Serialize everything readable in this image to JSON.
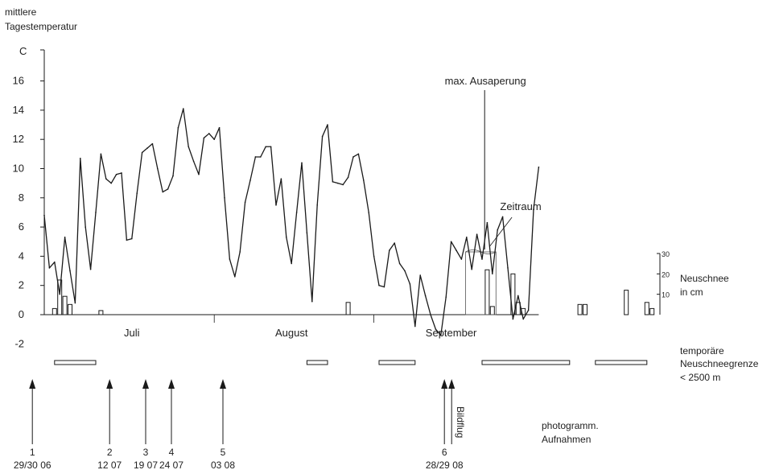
{
  "chart_data": {
    "type": "line",
    "y_title": [
      "mittlere",
      "Tagestemperatur"
    ],
    "y_unit": "C",
    "ylim": [
      -3,
      17
    ],
    "yticks": [
      16,
      14,
      12,
      10,
      8,
      6,
      4,
      2,
      0,
      -2
    ],
    "month_labels": [
      "Juli",
      "August",
      "September"
    ],
    "x_start": "29.06",
    "series": [
      {
        "values": [
          6.8,
          3.2,
          3.6,
          1.4,
          5.3,
          3.0,
          0.8,
          10.7,
          6.0,
          3.1,
          7.0,
          11.0,
          9.3,
          9.0,
          9.6,
          9.7,
          5.1,
          5.2,
          8.3,
          11.1,
          11.4,
          11.7,
          10.0,
          8.4,
          8.6,
          9.5,
          12.8,
          14.1,
          11.5,
          10.5,
          9.6,
          12.1,
          12.4,
          12.0,
          12.8,
          8.0,
          3.8,
          2.6,
          4.3,
          7.7,
          9.2,
          10.8,
          10.8,
          11.5,
          11.5,
          7.5,
          9.3,
          5.3,
          3.5,
          7.0,
          10.4,
          5.6,
          0.9,
          7.5,
          12.2,
          13.0,
          9.1,
          9.0,
          8.9,
          9.4,
          10.8,
          11.0,
          9.2,
          7.0,
          4.0,
          2.0,
          1.9,
          4.4,
          4.9,
          3.5,
          3.0,
          2.1,
          -0.8,
          2.7,
          1.3,
          0.0,
          -1.0,
          -1.4,
          1.2,
          5.0,
          4.4,
          3.8,
          5.3,
          3.1,
          5.5,
          3.8,
          6.3,
          2.8,
          5.8,
          6.7,
          3.2,
          -0.3,
          1.3,
          -0.3,
          0.3,
          7.2,
          10.1
        ]
      }
    ],
    "snow_axis": {
      "ticks": [
        30,
        20,
        10
      ],
      "label": [
        "Neuschnee",
        "in cm"
      ],
      "max": 30
    },
    "snow_bars": [
      {
        "day": 2,
        "cm": 3
      },
      {
        "day": 3,
        "cm": 17
      },
      {
        "day": 4,
        "cm": 9
      },
      {
        "day": 5,
        "cm": 5
      },
      {
        "day": 11,
        "cm": 2
      },
      {
        "day": 59,
        "cm": 6
      },
      {
        "day": 86,
        "cm": 22
      },
      {
        "day": 87,
        "cm": 4
      },
      {
        "day": 91,
        "cm": 20
      },
      {
        "day": 92,
        "cm": 6
      },
      {
        "day": 93,
        "cm": 3
      },
      {
        "day": 104,
        "cm": 5
      },
      {
        "day": 105,
        "cm": 5
      },
      {
        "day": 113,
        "cm": 12
      },
      {
        "day": 117,
        "cm": 6
      },
      {
        "day": 118,
        "cm": 3
      }
    ],
    "annotations": {
      "max_ausaperung": "max. Ausaperung",
      "zeitraum": "Zeitraum",
      "bildflug": "Bildflug",
      "photo_title": [
        "photogramm.",
        "Aufnahmen"
      ],
      "neuschneegrenze": [
        "temporäre",
        "Neuschneegrenze",
        "< 2500 m"
      ]
    },
    "neuschneegrenze_periods": [
      [
        2,
        10
      ],
      [
        51,
        55
      ],
      [
        65,
        72
      ],
      [
        85,
        102
      ],
      [
        107,
        117
      ]
    ],
    "photo_flights": [
      {
        "num": "1",
        "date": "29/30 06"
      },
      {
        "num": "2",
        "date": "12 07"
      },
      {
        "num": "3",
        "date": "19 07"
      },
      {
        "num": "4",
        "date": "24 07"
      },
      {
        "num": "5",
        "date": "03 08"
      },
      {
        "num": "6",
        "date": "28/29 08"
      }
    ]
  }
}
